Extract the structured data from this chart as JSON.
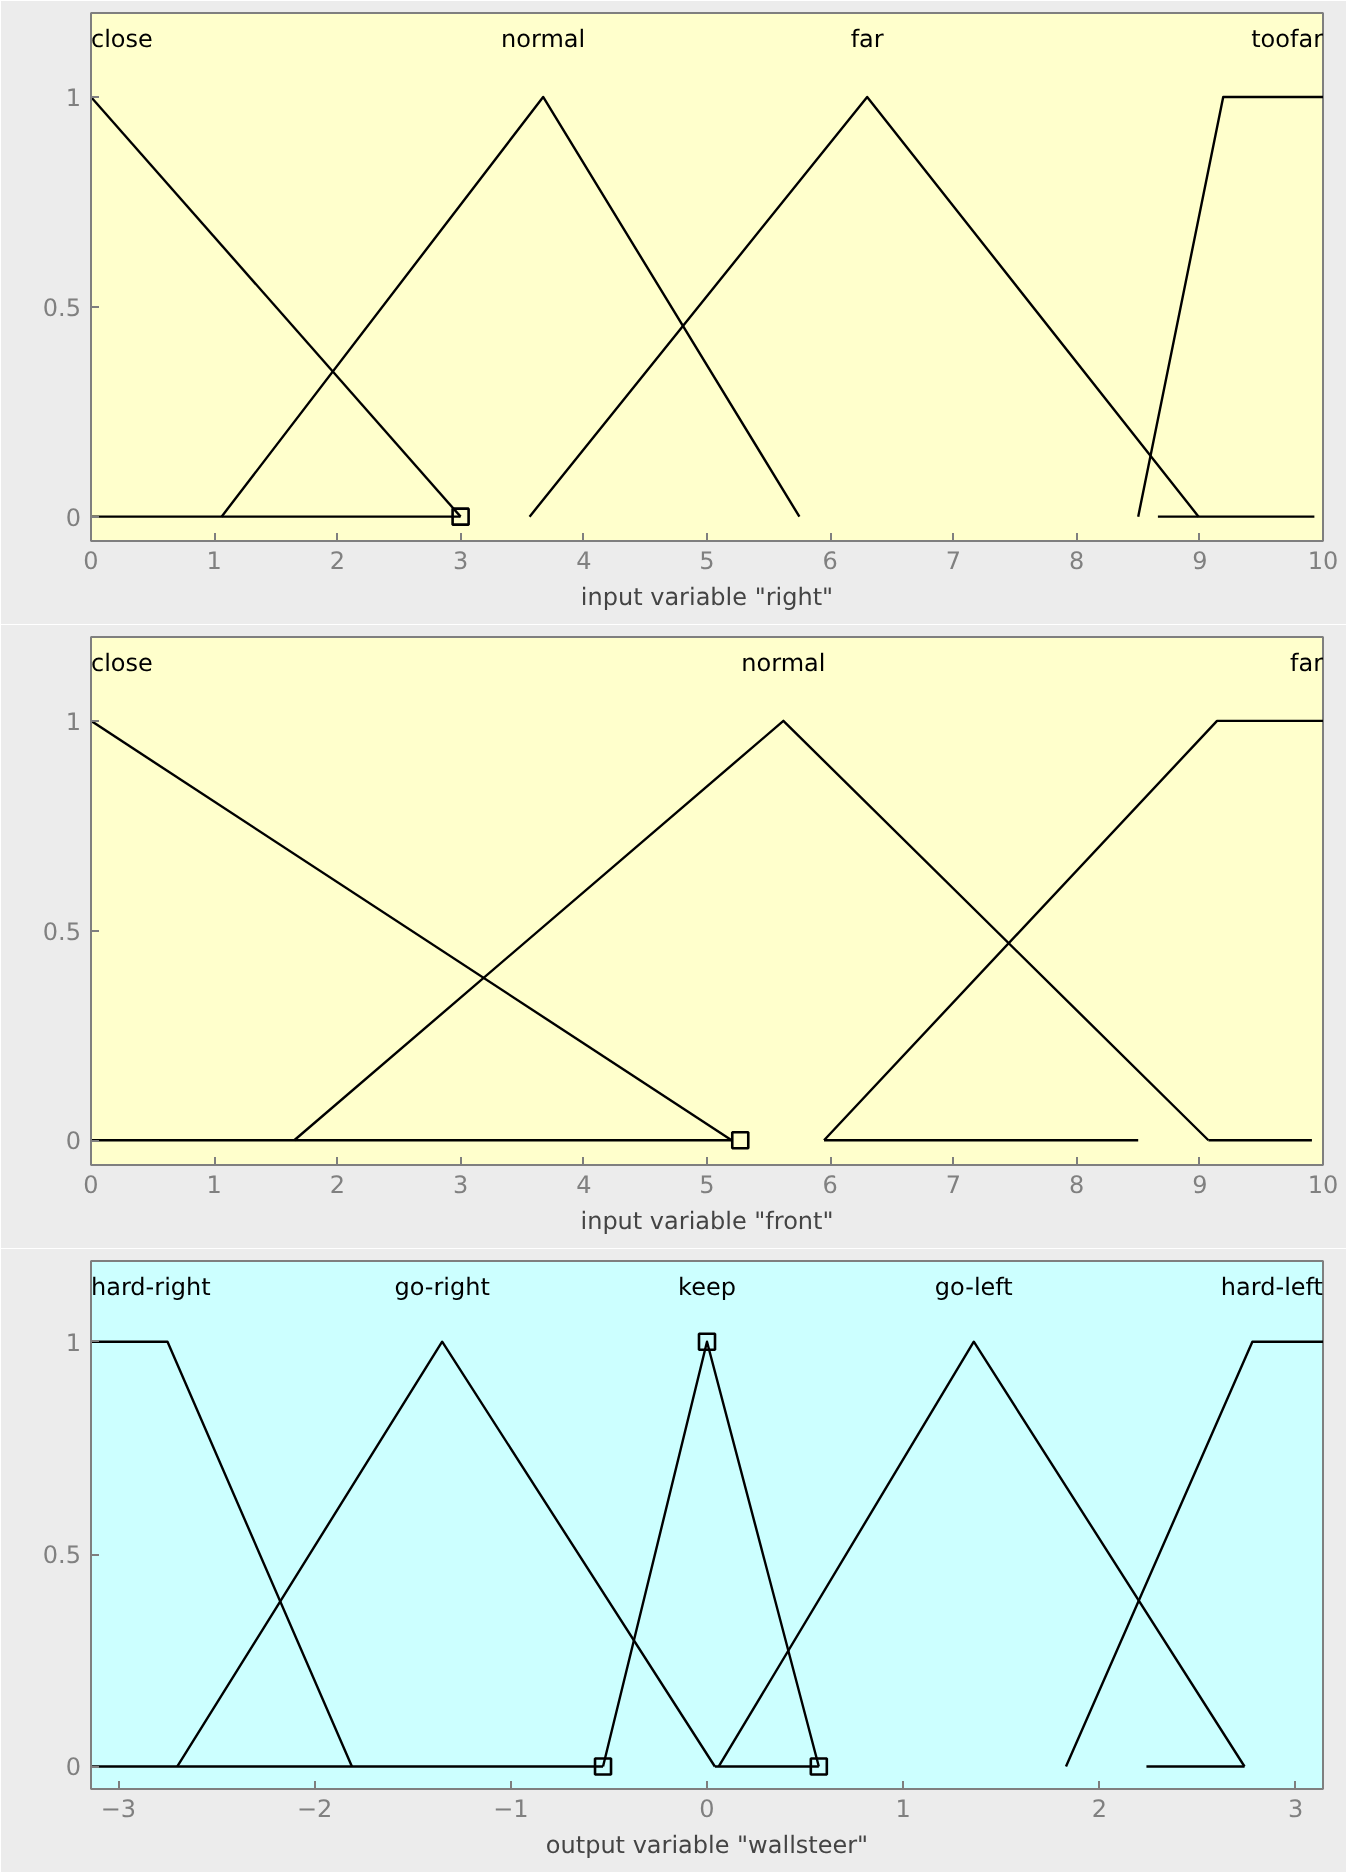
{
  "chart_data": [
    {
      "type": "line",
      "xlabel": "input variable \"right\"",
      "xlim": [
        0,
        10
      ],
      "ylim": [
        -0.058,
        1.2
      ],
      "xticks": [
        0,
        1,
        2,
        3,
        4,
        5,
        6,
        7,
        8,
        9,
        10
      ],
      "yticks": [
        0,
        0.5,
        1
      ],
      "grid": false,
      "line_style": "solid",
      "series": [
        {
          "name": "close",
          "color": "#000000",
          "x": [
            0,
            3
          ],
          "values": [
            1,
            0
          ]
        },
        {
          "name": "normal",
          "color": "#000000",
          "x": [
            1.06,
            3.67,
            5.75
          ],
          "values": [
            0,
            1,
            0
          ]
        },
        {
          "name": "far",
          "color": "#000000",
          "x": [
            3.56,
            6.3,
            8.99
          ],
          "values": [
            0,
            1,
            0
          ]
        },
        {
          "name": "toofar",
          "color": "#000000",
          "x": [
            8.5,
            9.19,
            10
          ],
          "values": [
            0,
            1,
            1
          ]
        },
        {
          "color": "#000000",
          "x": [
            0,
            3
          ],
          "values": [
            0,
            0
          ]
        },
        {
          "color": "#000000",
          "x": [
            8.66,
            9.93
          ],
          "values": [
            0,
            0
          ]
        },
        {
          "type": "scatter",
          "marker": "square",
          "color": "#000000",
          "x": [
            3.0
          ],
          "values": [
            0
          ]
        }
      ]
    },
    {
      "type": "line",
      "xlabel": "input variable \"front\"",
      "xlim": [
        0,
        10
      ],
      "ylim": [
        -0.059,
        1.2
      ],
      "xticks": [
        0,
        1,
        2,
        3,
        4,
        5,
        6,
        7,
        8,
        9,
        10
      ],
      "yticks": [
        0,
        0.5,
        1
      ],
      "grid": false,
      "line_style": "solid",
      "series": [
        {
          "name": "close",
          "color": "#000000",
          "x": [
            0,
            5.2
          ],
          "values": [
            1,
            0
          ]
        },
        {
          "name": "normal",
          "color": "#000000",
          "x": [
            1.65,
            5.62,
            9.07
          ],
          "values": [
            0,
            1,
            0
          ]
        },
        {
          "name": "far",
          "color": "#000000",
          "x": [
            5.95,
            9.14,
            10
          ],
          "values": [
            0,
            1,
            1
          ]
        },
        {
          "color": "#000000",
          "x": [
            0,
            5.2
          ],
          "values": [
            0,
            0
          ]
        },
        {
          "color": "#000000",
          "x": [
            5.95,
            8.5
          ],
          "values": [
            0,
            0
          ]
        },
        {
          "color": "#000000",
          "x": [
            9.07,
            9.91
          ],
          "values": [
            0,
            0
          ]
        },
        {
          "type": "scatter",
          "marker": "square",
          "color": "#000000",
          "x": [
            5.27
          ],
          "values": [
            0
          ]
        }
      ]
    },
    {
      "type": "line",
      "xlabel": "output variable \"wallsteer\"",
      "xlim": [
        -3.14,
        3.14
      ],
      "ylim": [
        -0.053,
        1.19
      ],
      "xticks": [
        -3,
        -2,
        -1,
        0,
        1,
        2,
        3
      ],
      "yticks": [
        0,
        0.5,
        1
      ],
      "grid": false,
      "line_style": "solid",
      "series": [
        {
          "name": "hard-right",
          "color": "#000000",
          "x": [
            -3.14,
            -2.75,
            -1.81
          ],
          "values": [
            1,
            1,
            0
          ]
        },
        {
          "name": "go-right",
          "color": "#000000",
          "x": [
            -2.7,
            -1.35,
            0.04
          ],
          "values": [
            0,
            1,
            0
          ]
        },
        {
          "name": "keep",
          "color": "#000000",
          "x": [
            -0.53,
            0,
            0.57
          ],
          "values": [
            0,
            1,
            0
          ]
        },
        {
          "name": "go-left",
          "color": "#000000",
          "x": [
            0.06,
            1.36,
            2.74
          ],
          "values": [
            0,
            1,
            0
          ]
        },
        {
          "name": "hard-left",
          "color": "#000000",
          "x": [
            1.83,
            2.78,
            3.14
          ],
          "values": [
            0,
            1,
            1
          ]
        },
        {
          "color": "#000000",
          "x": [
            -3.14,
            -0.53
          ],
          "values": [
            0,
            0
          ]
        },
        {
          "color": "#000000",
          "x": [
            0.04,
            0.57
          ],
          "values": [
            0,
            0
          ]
        },
        {
          "color": "#000000",
          "x": [
            2.24,
            2.74
          ],
          "values": [
            0,
            0
          ]
        },
        {
          "type": "scatter",
          "marker": "square",
          "color": "#000000",
          "x": [
            -0.53,
            0,
            0.57
          ],
          "values": [
            0,
            1,
            0
          ]
        }
      ]
    }
  ]
}
